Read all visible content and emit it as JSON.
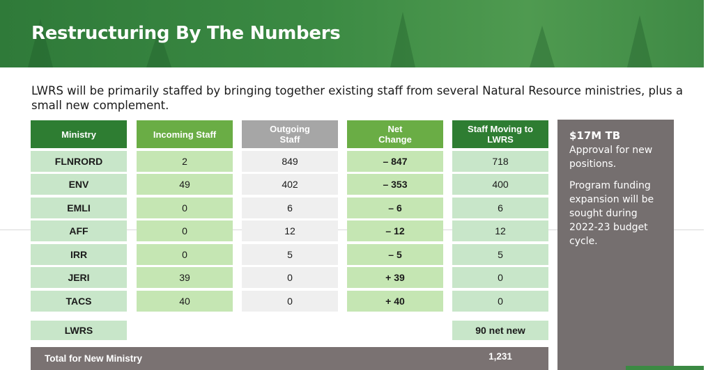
{
  "header": {
    "title": "Restructuring By The Numbers"
  },
  "intro": "LWRS will be primarily staffed by bringing together existing staff from several Natural Resource ministries, plus a small new complement.",
  "table": {
    "headers": {
      "ministry": "Ministry",
      "incoming": "Incoming Staff",
      "outgoing": "Outgoing Staff",
      "net": "Net Change",
      "moving": "Staff Moving to LWRS"
    },
    "rows": [
      {
        "ministry": "FLNRORD",
        "incoming": "2",
        "outgoing": "849",
        "net": "– 847",
        "moving": "718"
      },
      {
        "ministry": "ENV",
        "incoming": "49",
        "outgoing": "402",
        "net": "– 353",
        "moving": "400"
      },
      {
        "ministry": "EMLI",
        "incoming": "0",
        "outgoing": "6",
        "net": "– 6",
        "moving": "6"
      },
      {
        "ministry": "AFF",
        "incoming": "0",
        "outgoing": "12",
        "net": "– 12",
        "moving": "12"
      },
      {
        "ministry": "IRR",
        "incoming": "0",
        "outgoing": "5",
        "net": "– 5",
        "moving": "5"
      },
      {
        "ministry": "JERI",
        "incoming": "39",
        "outgoing": "0",
        "net": "+ 39",
        "moving": "0"
      },
      {
        "ministry": "TACS",
        "incoming": "40",
        "outgoing": "0",
        "net": "+ 40",
        "moving": "0"
      }
    ],
    "lwrs_label": "LWRS",
    "net_new": "90 net new",
    "total_label": "Total for New Ministry",
    "total_value": "1,231"
  },
  "sidebar": {
    "headline": "$17M TB",
    "line1": "Approval for new positions.",
    "line2": "Program funding expansion will be sought during 2022-23 budget cycle."
  },
  "colors": {
    "dark_green": "#2e7d32",
    "light_green": "#6aad45",
    "grey_header": "#a6a6a6",
    "side_panel": "#756f6f"
  }
}
